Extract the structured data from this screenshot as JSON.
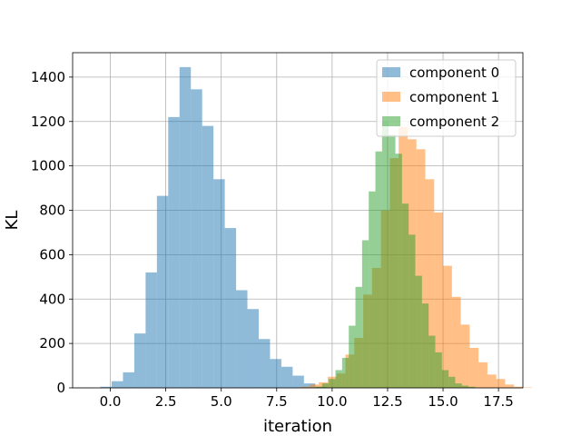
{
  "chart_data": {
    "type": "histogram",
    "xlabel": "iteration",
    "ylabel": "KL",
    "xlim": [
      -1.7,
      18.6
    ],
    "ylim": [
      0,
      1510
    ],
    "xticks": [
      0.0,
      2.5,
      5.0,
      7.5,
      10.0,
      12.5,
      15.0,
      17.5
    ],
    "xtick_labels": [
      "0.0",
      "2.5",
      "5.0",
      "7.5",
      "10.0",
      "12.5",
      "15.0",
      "17.5"
    ],
    "yticks": [
      0,
      200,
      400,
      600,
      800,
      1000,
      1200,
      1400
    ],
    "ytick_labels": [
      "0",
      "200",
      "400",
      "600",
      "800",
      "1000",
      "1200",
      "1400"
    ],
    "grid": true,
    "legend_position": "top-right",
    "alpha": 0.5,
    "series": [
      {
        "name": "component 0",
        "color": "#1f77b4",
        "bin_start": -0.45,
        "bin_width": 0.51,
        "values": [
          5,
          30,
          70,
          245,
          520,
          865,
          1220,
          1445,
          1345,
          1180,
          940,
          720,
          440,
          355,
          220,
          130,
          95,
          55,
          20,
          5
        ]
      },
      {
        "name": "component 1",
        "color": "#ff7f0e",
        "bin_start": 8.6,
        "bin_width": 0.4,
        "values": [
          5,
          15,
          25,
          50,
          65,
          150,
          225,
          420,
          540,
          800,
          1035,
          1175,
          1120,
          1075,
          940,
          790,
          550,
          410,
          285,
          180,
          115,
          60,
          40,
          15,
          5,
          2
        ]
      },
      {
        "name": "component 2",
        "color": "#2ca02c",
        "bin_start": 9.25,
        "bin_width": 0.3,
        "values": [
          5,
          20,
          40,
          80,
          135,
          280,
          455,
          665,
          885,
          1065,
          1200,
          1140,
          1055,
          830,
          690,
          505,
          380,
          235,
          160,
          80,
          50,
          20,
          10,
          5
        ]
      }
    ]
  }
}
